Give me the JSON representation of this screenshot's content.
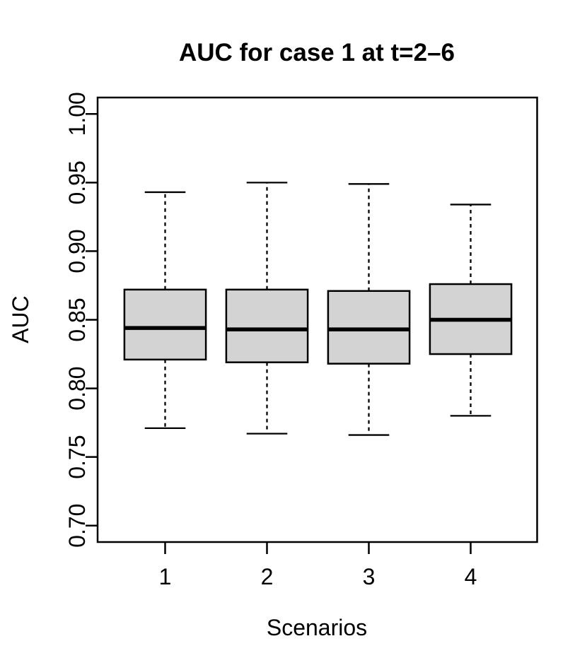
{
  "chart_data": {
    "type": "boxplot",
    "title": "AUC for case 1 at t=2–6",
    "xlabel": "Scenarios",
    "ylabel": "AUC",
    "categories": [
      "1",
      "2",
      "3",
      "4"
    ],
    "boxes": [
      {
        "category": "1",
        "lower_whisker": 0.771,
        "q1": 0.821,
        "median": 0.844,
        "q3": 0.872,
        "upper_whisker": 0.943
      },
      {
        "category": "2",
        "lower_whisker": 0.767,
        "q1": 0.819,
        "median": 0.843,
        "q3": 0.872,
        "upper_whisker": 0.95
      },
      {
        "category": "3",
        "lower_whisker": 0.766,
        "q1": 0.818,
        "median": 0.843,
        "q3": 0.871,
        "upper_whisker": 0.949
      },
      {
        "category": "4",
        "lower_whisker": 0.78,
        "q1": 0.825,
        "median": 0.85,
        "q3": 0.876,
        "upper_whisker": 0.934
      }
    ],
    "y_ticks": [
      {
        "value": 0.7,
        "label": "0.70"
      },
      {
        "value": 0.75,
        "label": "0.75"
      },
      {
        "value": 0.8,
        "label": "0.80"
      },
      {
        "value": 0.85,
        "label": "0.85"
      },
      {
        "value": 0.9,
        "label": "0.90"
      },
      {
        "value": 0.95,
        "label": "0.95"
      },
      {
        "value": 1.0,
        "label": "1.00"
      }
    ],
    "ylim": [
      0.688,
      1.012
    ],
    "grid": false,
    "legend": null,
    "whisker_style": "dashed",
    "colors": {
      "box_fill": "#d3d3d3",
      "line": "#000000",
      "background": "#ffffff"
    }
  }
}
